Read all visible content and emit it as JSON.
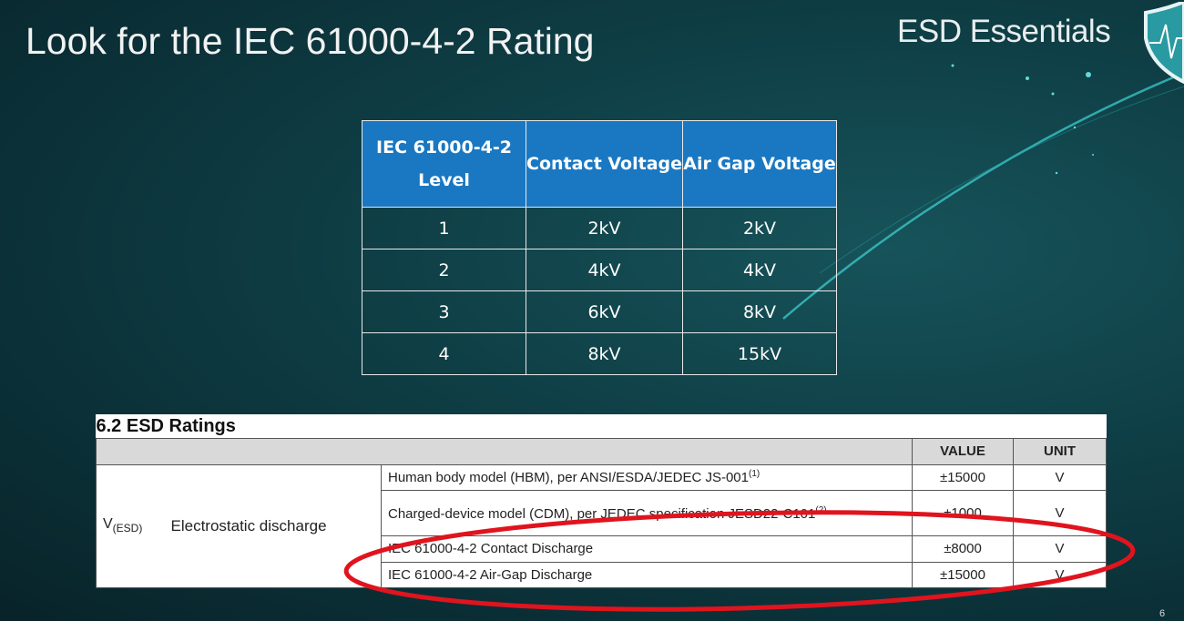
{
  "slide": {
    "title": "Look for the IEC 61000-4-2 Rating",
    "brand": "ESD Essentials",
    "page_number": "6"
  },
  "level_table": {
    "headers": [
      "IEC 61000-4-2 Level",
      "Contact Voltage",
      "Air Gap Voltage"
    ],
    "header_color": "#1a78c2",
    "rows": [
      [
        "1",
        "2kV",
        "2kV"
      ],
      [
        "2",
        "4kV",
        "4kV"
      ],
      [
        "3",
        "6kV",
        "8kV"
      ],
      [
        "4",
        "8kV",
        "15kV"
      ]
    ]
  },
  "esd_ratings": {
    "section_title": "6.2   ESD Ratings",
    "headers": {
      "value": "VALUE",
      "unit": "UNIT"
    },
    "symbol": "V",
    "symbol_sub": "(ESD)",
    "parameter": "Electrostatic discharge",
    "rows": [
      {
        "condition": "Human body model (HBM), per ANSI/ESDA/JEDEC JS-001",
        "note": "(1)",
        "value": "±15000",
        "unit": "V"
      },
      {
        "condition": "Charged-device model (CDM), per JEDEC specification JESD22-C101",
        "note": "(2)",
        "value": "±1000",
        "unit": "V"
      },
      {
        "condition": "IEC 61000-4-2 Contact Discharge",
        "value": "±8000",
        "unit": "V"
      },
      {
        "condition": "IEC 61000-4-2 Air-Gap Discharge",
        "value": "±15000",
        "unit": "V"
      }
    ],
    "highlight_color": "#e0141e"
  }
}
